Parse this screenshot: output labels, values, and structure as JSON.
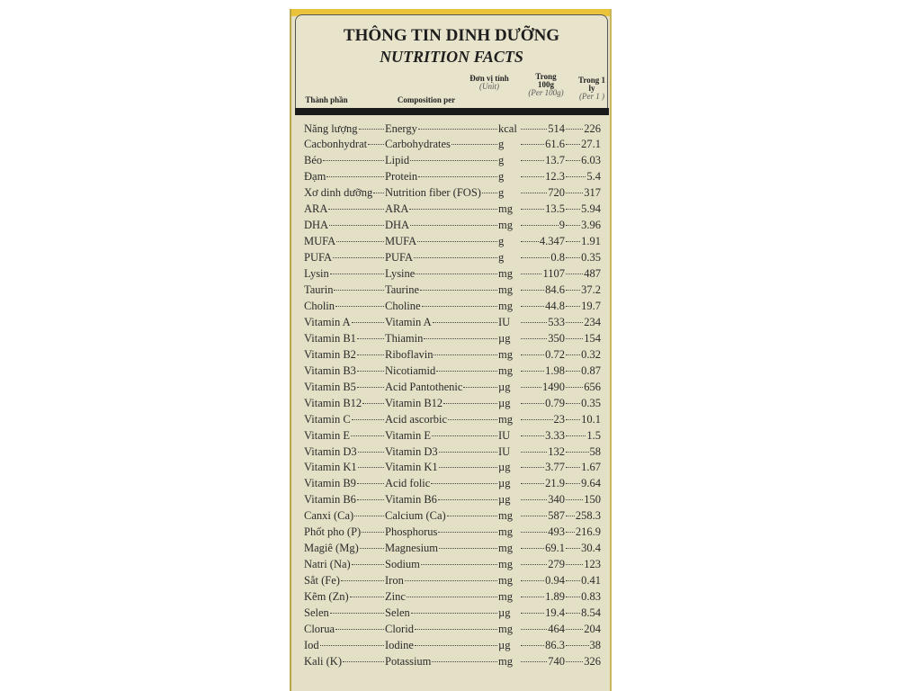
{
  "header": {
    "title": "THÔNG TIN DINH DƯỠNG",
    "subtitle": "NUTRITION FACTS",
    "columns": [
      {
        "main": "Thành phần"
      },
      {
        "main": "Composition per"
      },
      {
        "main": "Đơn vị tính",
        "sub": "(Unit)"
      },
      {
        "main": "Trong 100g",
        "sub": "(Per 100g)"
      },
      {
        "main": "Trong 1 ly",
        "sub": "(Per 1 )"
      }
    ]
  },
  "table": {
    "rows": [
      [
        "Năng lượng",
        "Energy",
        "kcal",
        "514",
        "226"
      ],
      [
        "Cacbonhydrat",
        "Carbohydrates",
        "g",
        "61.6",
        "27.1"
      ],
      [
        "Béo",
        "Lipid",
        "g",
        "13.7",
        "6.03"
      ],
      [
        "Đạm",
        "Protein",
        "g",
        "12.3",
        "5.4"
      ],
      [
        "Xơ dinh dưỡng",
        "Nutrition fiber (FOS)",
        "g",
        "720",
        "317"
      ],
      [
        "ARA",
        "ARA",
        "mg",
        "13.5",
        "5.94"
      ],
      [
        "DHA",
        "DHA",
        "mg",
        "9",
        "3.96"
      ],
      [
        "MUFA",
        "MUFA",
        "g",
        "4.347",
        "1.91"
      ],
      [
        "PUFA",
        "PUFA",
        "g",
        "0.8",
        "0.35"
      ],
      [
        "Lysin",
        "Lysine",
        "mg",
        "1107",
        "487"
      ],
      [
        "Taurin",
        "Taurine",
        "mg",
        "84.6",
        "37.2"
      ],
      [
        "Cholin",
        "Choline",
        "mg",
        "44.8",
        "19.7"
      ],
      [
        "Vitamin A",
        "Vitamin A",
        "IU",
        "533",
        "234"
      ],
      [
        "Vitamin B1",
        "Thiamin",
        "µg",
        "350",
        "154"
      ],
      [
        "Vitamin B2",
        "Riboflavin",
        "mg",
        "0.72",
        "0.32"
      ],
      [
        "Vitamin B3",
        "Nicotiamid",
        "mg",
        "1.98",
        "0.87"
      ],
      [
        "Vitamin B5",
        "Acid Pantothenic",
        "µg",
        "1490",
        "656"
      ],
      [
        "Vitamin B12",
        "Vitamin B12",
        "µg",
        "0.79",
        "0.35"
      ],
      [
        "Vitamin C",
        "Acid ascorbic",
        "mg",
        "23",
        "10.1"
      ],
      [
        "Vitamin E",
        "Vitamin E",
        "IU",
        "3.33",
        "1.5"
      ],
      [
        "Vitamin D3",
        "Vitamin D3",
        "IU",
        "132",
        "58"
      ],
      [
        "Vitamin K1",
        "Vitamin K1",
        "µg",
        "3.77",
        "1.67"
      ],
      [
        "Vitamin B9",
        "Acid folic",
        "µg",
        "21.9",
        "9.64"
      ],
      [
        "Vitamin B6",
        "Vitamin B6",
        "µg",
        "340",
        "150"
      ],
      [
        "Canxi (Ca)",
        "Calcium (Ca)",
        "mg",
        "587",
        "258.3"
      ],
      [
        "Phốt pho (P)",
        "Phosphorus",
        "mg",
        "493",
        "216.9"
      ],
      [
        "Magiê (Mg)",
        "Magnesium",
        "mg",
        "69.1",
        "30.4"
      ],
      [
        "Natri (Na)",
        "Sodium",
        "mg",
        "279",
        "123"
      ],
      [
        "Sắt (Fe)",
        "Iron",
        "mg",
        "0.94",
        "0.41"
      ],
      [
        "Kẽm (Zn)",
        "Zinc",
        "mg",
        "1.89",
        "0.83"
      ],
      [
        "Selen",
        "Selen",
        "µg",
        "19.4",
        "8.54"
      ],
      [
        "Clorua",
        "Clorid",
        "mg",
        "464",
        "204"
      ],
      [
        "Iod",
        "Iodine",
        "µg",
        "86.3",
        "38"
      ],
      [
        "Kali (K)",
        "Potassium",
        "mg",
        "740",
        "326"
      ]
    ]
  }
}
